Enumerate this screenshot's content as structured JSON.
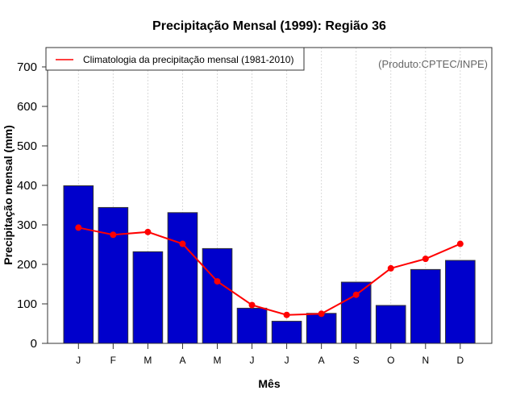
{
  "chart_data": {
    "type": "bar",
    "title": "Precipitação Mensal (1999): Região 36",
    "xlabel": "Mês",
    "ylabel": "Precipitação mensal (mm)",
    "categories": [
      "J",
      "F",
      "M",
      "A",
      "M",
      "J",
      "J",
      "A",
      "S",
      "O",
      "N",
      "D"
    ],
    "ylim": [
      0,
      700
    ],
    "yticks": [
      0,
      100,
      200,
      300,
      400,
      500,
      600,
      700
    ],
    "grid": "vertical-dotted",
    "legend": {
      "position": "top-left",
      "entries": [
        "Climatologia da precipitação mensal (1981-2010)"
      ]
    },
    "annotation": "(Produto:CPTEC/INPE)",
    "series": [
      {
        "name": "Precipitação mensal (1999)",
        "type": "bar",
        "color": "#0000CC",
        "values": [
          399,
          344,
          232,
          331,
          240,
          89,
          56,
          76,
          155,
          96,
          187,
          210
        ]
      },
      {
        "name": "Climatologia da precipitação mensal (1981-2010)",
        "type": "line",
        "color": "#FF0000",
        "values": [
          293,
          275,
          282,
          252,
          157,
          97,
          72,
          75,
          123,
          190,
          214,
          252
        ]
      }
    ]
  }
}
